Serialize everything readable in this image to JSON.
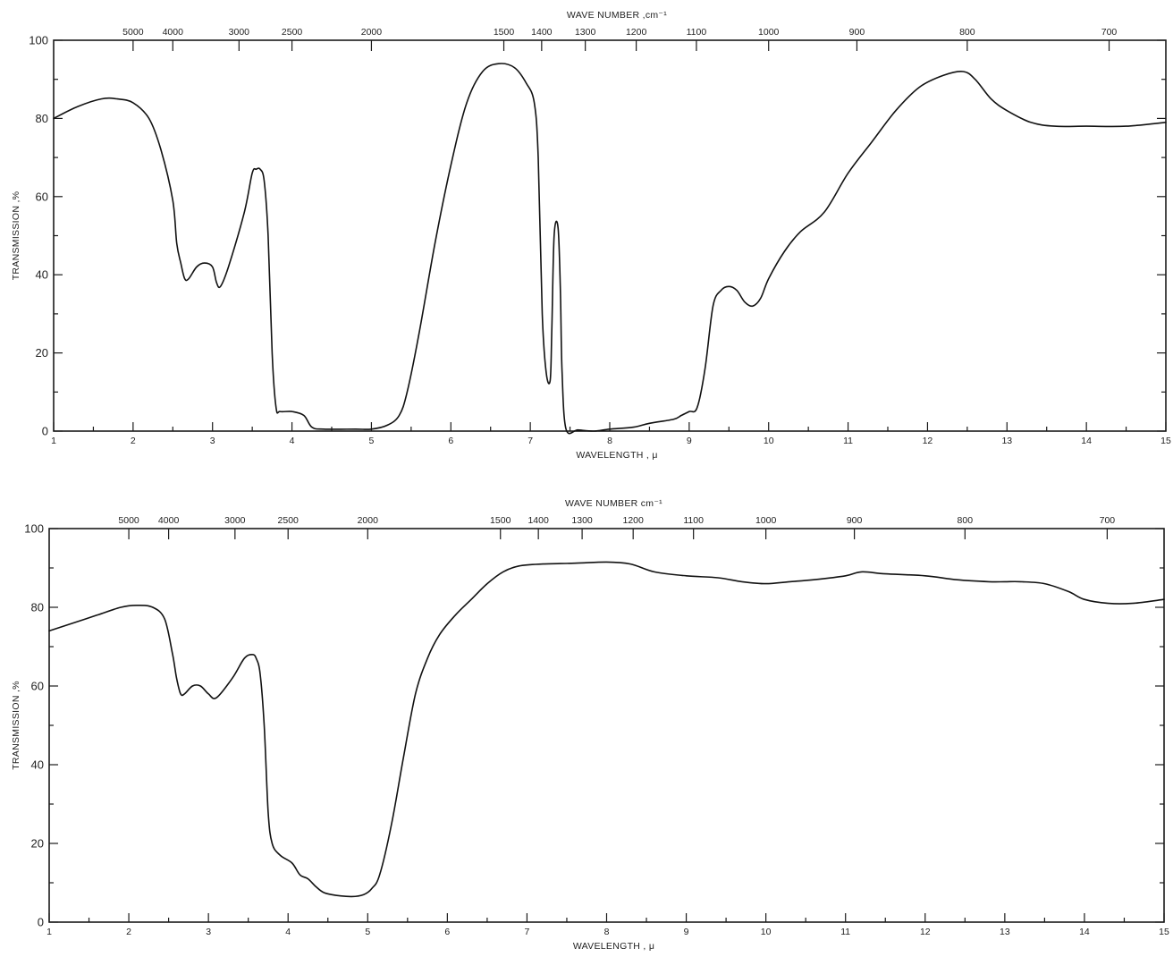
{
  "chart_data": [
    {
      "type": "line",
      "top_axis_title": "WAVE NUMBER ,cm⁻¹",
      "xlabel": "WAVELENGTH , μ",
      "ylabel": "TRANSMISSION ,%",
      "xlim": [
        1,
        15
      ],
      "ylim": [
        0,
        100
      ],
      "x_ticks": [
        "1",
        "2",
        "3",
        "4",
        "5",
        "6",
        "7",
        "8",
        "9",
        "10",
        "11",
        "12",
        "13",
        "14",
        "15"
      ],
      "y_ticks": [
        "0",
        "20",
        "40",
        "60",
        "80",
        "100"
      ],
      "top_ticks": [
        "5000",
        "4000",
        "3000",
        "2500",
        "2000",
        "1500",
        "1400",
        "1300",
        "1200",
        "1100",
        "1000",
        "900",
        "800",
        "700"
      ],
      "grid": false,
      "series": [
        {
          "x": [
            1.0,
            1.3,
            1.6,
            1.8,
            2.0,
            2.2,
            2.35,
            2.5,
            2.55,
            2.6,
            2.65,
            2.7,
            2.8,
            2.9,
            3.0,
            3.05,
            3.1,
            3.2,
            3.4,
            3.5,
            3.55,
            3.6,
            3.65,
            3.7,
            3.75,
            3.8,
            3.85,
            4.0,
            4.15,
            4.25,
            4.4,
            4.8,
            5.0,
            5.2,
            5.35,
            5.45,
            5.6,
            5.8,
            6.0,
            6.2,
            6.4,
            6.6,
            6.8,
            6.95,
            7.05,
            7.1,
            7.15,
            7.2,
            7.25,
            7.27,
            7.3,
            7.35,
            7.38,
            7.4,
            7.45,
            7.6,
            7.8,
            8.0,
            8.3,
            8.5,
            8.8,
            8.9,
            9.0,
            9.1,
            9.2,
            9.3,
            9.4,
            9.5,
            9.6,
            9.7,
            9.8,
            9.9,
            10.0,
            10.2,
            10.4,
            10.7,
            11.0,
            11.3,
            11.6,
            11.9,
            12.2,
            12.45,
            12.6,
            12.8,
            13.0,
            13.3,
            13.6,
            14.0,
            14.5,
            15.0
          ],
          "y": [
            80,
            83,
            85,
            85,
            84,
            80,
            72,
            59,
            48,
            43,
            39,
            39,
            42,
            43,
            42,
            38,
            37,
            42,
            56,
            66,
            67,
            67,
            64,
            50,
            20,
            6,
            5,
            5,
            4,
            1,
            0.5,
            0.5,
            0.5,
            1.5,
            4,
            10,
            25,
            48,
            68,
            84,
            92,
            94,
            93,
            89,
            84,
            70,
            30,
            15,
            13,
            25,
            50,
            52,
            35,
            15,
            0.5,
            0.3,
            0,
            0.5,
            1,
            2,
            3,
            4,
            5,
            6,
            16,
            32,
            36,
            37,
            36,
            33,
            32,
            34,
            39,
            46,
            51,
            56,
            66,
            74,
            82,
            88,
            91,
            92,
            90,
            85,
            82,
            79,
            78,
            78,
            78,
            79
          ]
        }
      ]
    },
    {
      "type": "line",
      "top_axis_title": "WAVE NUMBER cm⁻¹",
      "xlabel": "WAVELENGTH , μ",
      "ylabel": "TRANSMISSION ,%",
      "xlim": [
        1,
        15
      ],
      "ylim": [
        0,
        100
      ],
      "x_ticks": [
        "1",
        "2",
        "3",
        "4",
        "5",
        "6",
        "7",
        "8",
        "9",
        "10",
        "11",
        "12",
        "13",
        "14",
        "15"
      ],
      "y_ticks": [
        "0",
        "20",
        "40",
        "60",
        "80",
        "100"
      ],
      "top_ticks": [
        "5000",
        "4000",
        "3000",
        "2500",
        "2000",
        "1500",
        "1400",
        "1300",
        "1200",
        "1100",
        "1000",
        "900",
        "800",
        "700"
      ],
      "grid": false,
      "series": [
        {
          "x": [
            1.0,
            1.3,
            1.6,
            1.9,
            2.1,
            2.3,
            2.45,
            2.55,
            2.6,
            2.65,
            2.7,
            2.8,
            2.9,
            3.0,
            3.1,
            3.3,
            3.45,
            3.55,
            3.6,
            3.65,
            3.7,
            3.75,
            3.8,
            3.9,
            4.05,
            4.15,
            4.25,
            4.35,
            4.45,
            4.6,
            4.8,
            4.95,
            5.05,
            5.15,
            5.3,
            5.45,
            5.6,
            5.75,
            5.9,
            6.1,
            6.3,
            6.5,
            6.7,
            6.9,
            7.2,
            7.6,
            8.0,
            8.3,
            8.6,
            9.0,
            9.4,
            9.7,
            10.0,
            10.3,
            10.6,
            11.0,
            11.2,
            11.5,
            12.0,
            12.4,
            12.8,
            13.0,
            13.2,
            13.5,
            13.8,
            14.0,
            14.3,
            14.6,
            15.0
          ],
          "y": [
            74,
            76,
            78,
            80,
            80.5,
            80,
            77,
            68,
            62,
            58,
            58,
            60,
            60,
            58,
            57,
            62,
            67,
            68,
            67,
            63,
            50,
            28,
            20,
            17,
            15,
            12,
            11,
            9,
            7.5,
            6.8,
            6.5,
            7,
            8.5,
            12,
            25,
            42,
            58,
            67,
            73,
            78,
            82,
            86,
            89,
            90.5,
            91,
            91.2,
            91.5,
            91,
            89,
            88,
            87.5,
            86.5,
            86,
            86.5,
            87,
            88,
            89,
            88.5,
            88,
            87,
            86.5,
            86.5,
            86.5,
            86,
            84,
            82,
            81,
            81,
            82
          ]
        }
      ]
    }
  ]
}
